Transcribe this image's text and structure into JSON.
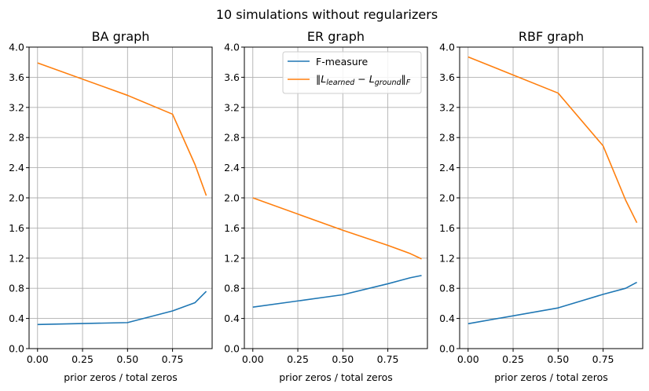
{
  "figure": {
    "suptitle": "10 simulations without regularizers"
  },
  "colors": {
    "f_measure": "#1f77b4",
    "norm": "#ff7f0e",
    "grid": "#b0b0b0",
    "axes": "#000000"
  },
  "legend": {
    "placement": "upper-right of middle panel",
    "items": [
      {
        "label": "F-measure",
        "color": "#1f77b4"
      },
      {
        "label": "‖L_learned − L_ground‖_F",
        "color": "#ff7f0e"
      }
    ]
  },
  "chart_data": [
    {
      "type": "line",
      "title": "BA graph",
      "xlabel": "prior zeros / total zeros",
      "ylabel": "",
      "xlim": [
        -0.047,
        0.97
      ],
      "ylim": [
        0,
        4.0
      ],
      "xticks": [
        "0.00",
        "0.25",
        "0.50",
        "0.75"
      ],
      "yticks": [
        "0.0",
        "0.4",
        "0.8",
        "1.2",
        "1.6",
        "2.0",
        "2.4",
        "2.8",
        "3.2",
        "3.6",
        "4.0"
      ],
      "grid": true,
      "x": [
        0.0,
        0.5,
        0.75,
        0.875,
        0.9375
      ],
      "series": [
        {
          "name": "F-measure",
          "values": [
            0.32,
            0.345,
            0.5,
            0.61,
            0.76
          ]
        },
        {
          "name": "‖L_learned − L_ground‖_F",
          "values": [
            3.79,
            3.36,
            3.11,
            2.44,
            2.03
          ]
        }
      ]
    },
    {
      "type": "line",
      "title": "ER graph",
      "xlabel": "prior zeros / total zeros",
      "ylabel": "",
      "xlim": [
        -0.047,
        0.97
      ],
      "ylim": [
        0,
        4.0
      ],
      "xticks": [
        "0.00",
        "0.25",
        "0.50",
        "0.75"
      ],
      "yticks": [
        "0.0",
        "0.4",
        "0.8",
        "1.2",
        "1.6",
        "2.0",
        "2.4",
        "2.8",
        "3.2",
        "3.6",
        "4.0"
      ],
      "grid": true,
      "x": [
        0.0,
        0.5,
        0.75,
        0.875,
        0.9375
      ],
      "series": [
        {
          "name": "F-measure",
          "values": [
            0.55,
            0.715,
            0.86,
            0.94,
            0.97
          ]
        },
        {
          "name": "‖L_learned − L_ground‖_F",
          "values": [
            2.0,
            1.57,
            1.37,
            1.26,
            1.19
          ]
        }
      ]
    },
    {
      "type": "line",
      "title": "RBF graph",
      "xlabel": "prior zeros / total zeros",
      "ylabel": "",
      "xlim": [
        -0.047,
        0.97
      ],
      "ylim": [
        0,
        4.0
      ],
      "xticks": [
        "0.00",
        "0.25",
        "0.50",
        "0.75"
      ],
      "yticks": [
        "0.0",
        "0.4",
        "0.8",
        "1.2",
        "1.6",
        "2.0",
        "2.4",
        "2.8",
        "3.2",
        "3.6",
        "4.0"
      ],
      "grid": true,
      "x": [
        0.0,
        0.5,
        0.75,
        0.875,
        0.9375
      ],
      "series": [
        {
          "name": "F-measure",
          "values": [
            0.33,
            0.54,
            0.72,
            0.8,
            0.88
          ]
        },
        {
          "name": "‖L_learned − L_ground‖_F",
          "values": [
            3.87,
            3.39,
            2.69,
            1.97,
            1.67
          ]
        }
      ]
    }
  ]
}
